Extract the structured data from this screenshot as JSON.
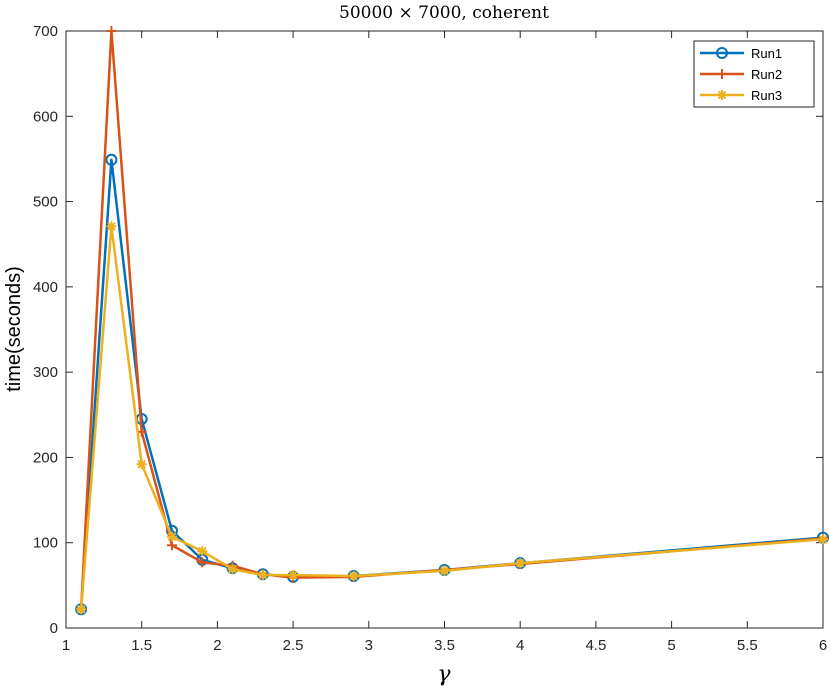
{
  "chart_data": {
    "type": "line",
    "title": "50000 × 7000, coherent",
    "xlabel": "γ",
    "ylabel": "time(seconds)",
    "xlim": [
      1,
      6
    ],
    "ylim": [
      0,
      700
    ],
    "xticks": [
      1,
      1.5,
      2,
      2.5,
      3,
      3.5,
      4,
      4.5,
      5,
      5.5,
      6
    ],
    "xtick_labels": [
      "1",
      "1.5",
      "2",
      "2.5",
      "3",
      "3.5",
      "4",
      "4.5",
      "5",
      "5.5",
      "6"
    ],
    "yticks": [
      0,
      100,
      200,
      300,
      400,
      500,
      600,
      700
    ],
    "ytick_labels": [
      "0",
      "100",
      "200",
      "300",
      "400",
      "500",
      "600",
      "700"
    ],
    "grid": false,
    "legend_position": "top-right",
    "x": [
      1.1,
      1.3,
      1.5,
      1.7,
      1.9,
      2.1,
      2.3,
      2.5,
      2.9,
      3.5,
      4,
      6
    ],
    "series": [
      {
        "name": "Run1",
        "color": "#0072BD",
        "marker": "circle",
        "values": [
          22,
          549,
          245,
          114,
          80,
          70,
          63,
          60,
          61,
          68,
          76,
          106
        ]
      },
      {
        "name": "Run2",
        "color": "#D95319",
        "marker": "plus",
        "values": [
          22,
          700,
          230,
          97,
          77,
          73,
          63,
          59,
          60,
          68,
          75,
          105
        ]
      },
      {
        "name": "Run3",
        "color": "#EDB120",
        "marker": "asterisk",
        "values": [
          22,
          471,
          192,
          107,
          90,
          69,
          62,
          62,
          61,
          67,
          76,
          104
        ]
      }
    ]
  }
}
